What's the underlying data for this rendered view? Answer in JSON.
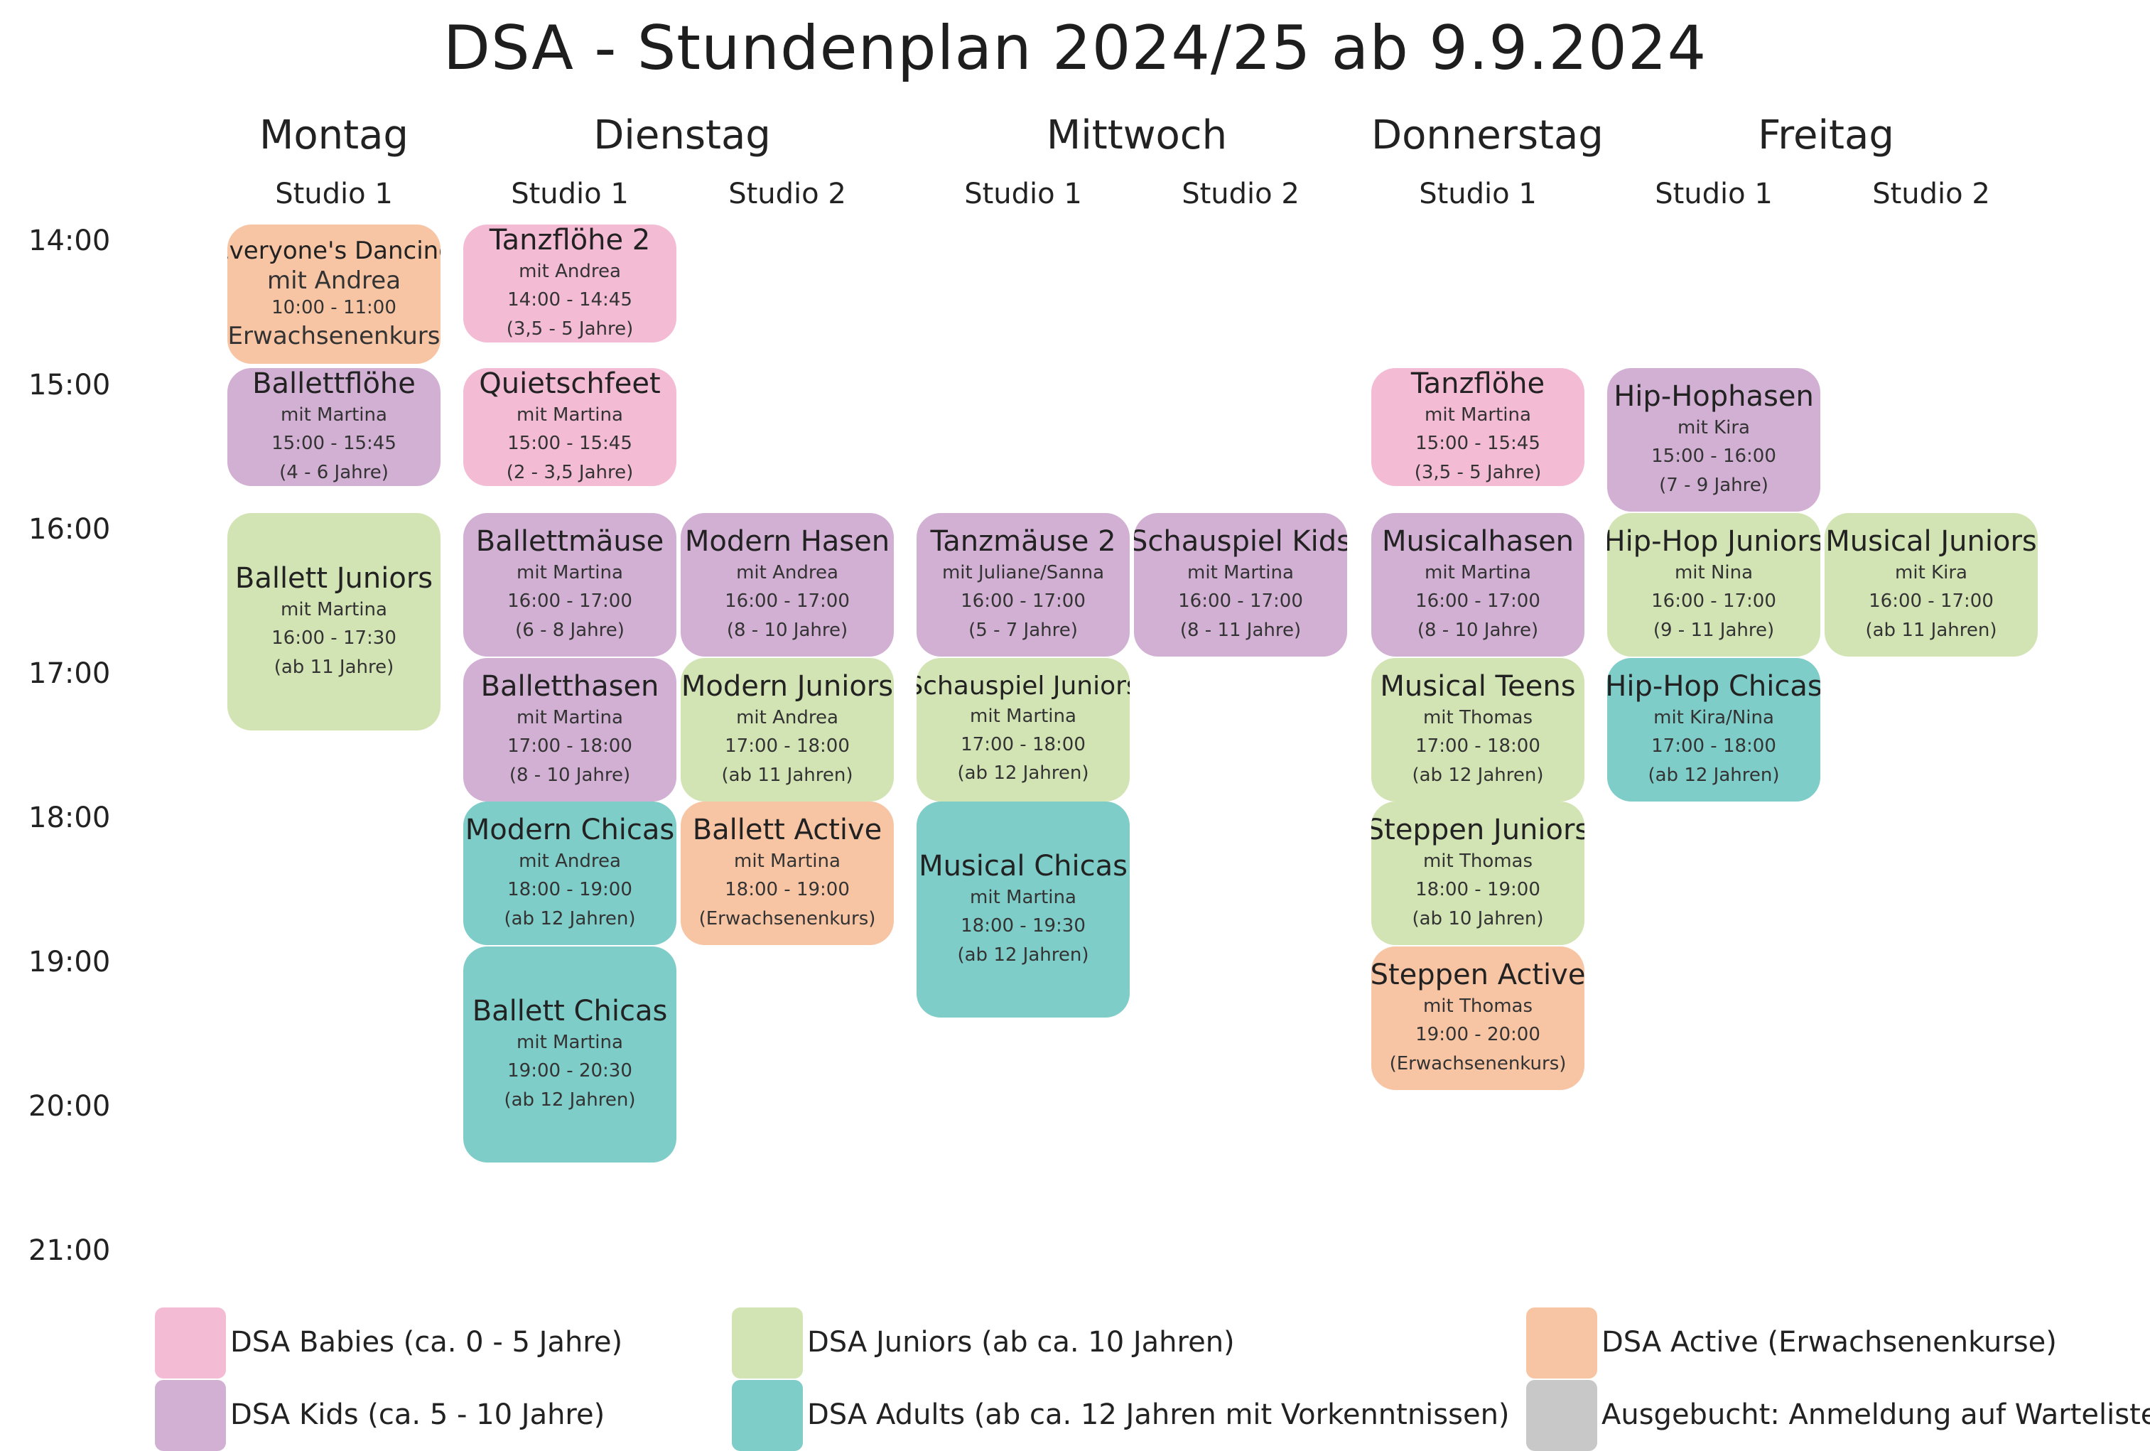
{
  "title": "DSA - Stundenplan 2024/25 ab 9.9.2024",
  "days": [
    "Montag",
    "Dienstag",
    "Mittwoch",
    "Donnerstag",
    "Freitag"
  ],
  "studios": {
    "mon1": "Studio 1",
    "tue1": "Studio 1",
    "tue2": "Studio 2",
    "wed1": "Studio 1",
    "wed2": "Studio 2",
    "thu1": "Studio 1",
    "fri1": "Studio 1",
    "fri2": "Studio 2"
  },
  "times": [
    "14:00",
    "15:00",
    "16:00",
    "17:00",
    "18:00",
    "19:00",
    "20:00",
    "21:00"
  ],
  "classes": [
    {
      "name": "Everyone's Dancing",
      "line1": "mit Andrea",
      "line2": "10:00 - 11:00",
      "line3": "(Erwachsenenkurs)",
      "category": "active"
    },
    {
      "name": "Ballettflöhe",
      "line1": "mit Martina",
      "line2": "15:00 - 15:45",
      "line3": "(4 - 6 Jahre)",
      "category": "kids"
    },
    {
      "name": "Ballett Juniors",
      "line1": "mit Martina",
      "line2": "16:00 - 17:30",
      "line3": "(ab 11 Jahre)",
      "category": "juniors"
    },
    {
      "name": "Tanzflöhe 2",
      "line1": "mit Andrea",
      "line2": "14:00 - 14:45",
      "line3": "(3,5 - 5 Jahre)",
      "category": "babies"
    },
    {
      "name": "Quietschfeet",
      "line1": "mit Martina",
      "line2": "15:00 - 15:45",
      "line3": "(2 - 3,5 Jahre)",
      "category": "babies"
    },
    {
      "name": "Ballettmäuse",
      "line1": "mit Martina",
      "line2": "16:00 - 17:00",
      "line3": "(6 - 8 Jahre)",
      "category": "kids"
    },
    {
      "name": "Balletthasen",
      "line1": "mit Martina",
      "line2": "17:00 - 18:00",
      "line3": "(8 - 10 Jahre)",
      "category": "kids"
    },
    {
      "name": "Modern Chicas",
      "line1": "mit Andrea",
      "line2": "18:00 - 19:00",
      "line3": "(ab 12 Jahren)",
      "category": "adults"
    },
    {
      "name": "Ballett Chicas",
      "line1": "mit Martina",
      "line2": "19:00 - 20:30",
      "line3": "(ab 12 Jahren)",
      "category": "adults"
    },
    {
      "name": "Modern Hasen",
      "line1": "mit Andrea",
      "line2": "16:00 - 17:00",
      "line3": "(8 - 10 Jahre)",
      "category": "kids"
    },
    {
      "name": "Modern Juniors",
      "line1": "mit Andrea",
      "line2": "17:00 - 18:00",
      "line3": "(ab 11 Jahren)",
      "category": "juniors"
    },
    {
      "name": "Ballett Active",
      "line1": "mit Martina",
      "line2": "18:00 - 19:00",
      "line3": "(Erwachsenenkurs)",
      "category": "active"
    },
    {
      "name": "Tanzmäuse 2",
      "line1": "mit Juliane/Sanna",
      "line2": "16:00 - 17:00",
      "line3": "(5 - 7 Jahre)",
      "category": "kids"
    },
    {
      "name": "Schauspiel Juniors",
      "line1": "mit Martina",
      "line2": "17:00 - 18:00",
      "line3": "(ab 12 Jahren)",
      "category": "juniors"
    },
    {
      "name": "Musical Chicas",
      "line1": "mit Martina",
      "line2": "18:00 - 19:30",
      "line3": "(ab 12 Jahren)",
      "category": "adults"
    },
    {
      "name": "Schauspiel Kids",
      "line1": "mit Martina",
      "line2": "16:00 - 17:00",
      "line3": "(8 - 11 Jahre)",
      "category": "kids"
    },
    {
      "name": "Tanzflöhe",
      "line1": "mit Martina",
      "line2": "15:00 - 15:45",
      "line3": "(3,5 - 5 Jahre)",
      "category": "babies"
    },
    {
      "name": "Musicalhasen",
      "line1": "mit Martina",
      "line2": "16:00 - 17:00",
      "line3": "(8 - 10 Jahre)",
      "category": "kids"
    },
    {
      "name": "Musical Teens",
      "line1": "mit Thomas",
      "line2": "17:00 - 18:00",
      "line3": "(ab 12 Jahren)",
      "category": "juniors"
    },
    {
      "name": "Steppen Juniors",
      "line1": "mit Thomas",
      "line2": "18:00 - 19:00",
      "line3": "(ab 10 Jahren)",
      "category": "juniors"
    },
    {
      "name": "Steppen Active",
      "line1": "mit Thomas",
      "line2": "19:00 - 20:00",
      "line3": "(Erwachsenenkurs)",
      "category": "active"
    },
    {
      "name": "Hip-Hophasen",
      "line1": "mit Kira",
      "line2": "15:00 - 16:00",
      "line3": "(7 - 9 Jahre)",
      "category": "kids"
    },
    {
      "name": "Hip-Hop Juniors",
      "line1": "mit Nina",
      "line2": "16:00 - 17:00",
      "line3": "(9 - 11 Jahre)",
      "category": "juniors"
    },
    {
      "name": "Hip-Hop Chicas",
      "line1": "mit Kira/Nina",
      "line2": "17:00 - 18:00",
      "line3": "(ab 12 Jahren)",
      "category": "adults"
    },
    {
      "name": "Musical Juniors",
      "line1": "mit Kira",
      "line2": "16:00 - 17:00",
      "line3": "(ab 11 Jahren)",
      "category": "juniors"
    }
  ],
  "legend": [
    {
      "label": "DSA Babies (ca. 0 - 5 Jahre)",
      "color": "#f4bcd4"
    },
    {
      "label": "DSA Kids (ca. 5 - 10 Jahre)",
      "color": "#d2b0d4"
    },
    {
      "label": "DSA Juniors (ab ca. 10 Jahren)",
      "color": "#d3e4b4"
    },
    {
      "label": "DSA Adults (ab ca. 12 Jahren mit Vorkenntnissen)",
      "color": "#7fcdc8"
    },
    {
      "label": "DSA Active (Erwachsenenkurse)",
      "color": "#f8c5a4"
    },
    {
      "label": "Ausgebucht: Anmeldung auf Warteliste",
      "color": "#c8c8c8"
    }
  ]
}
